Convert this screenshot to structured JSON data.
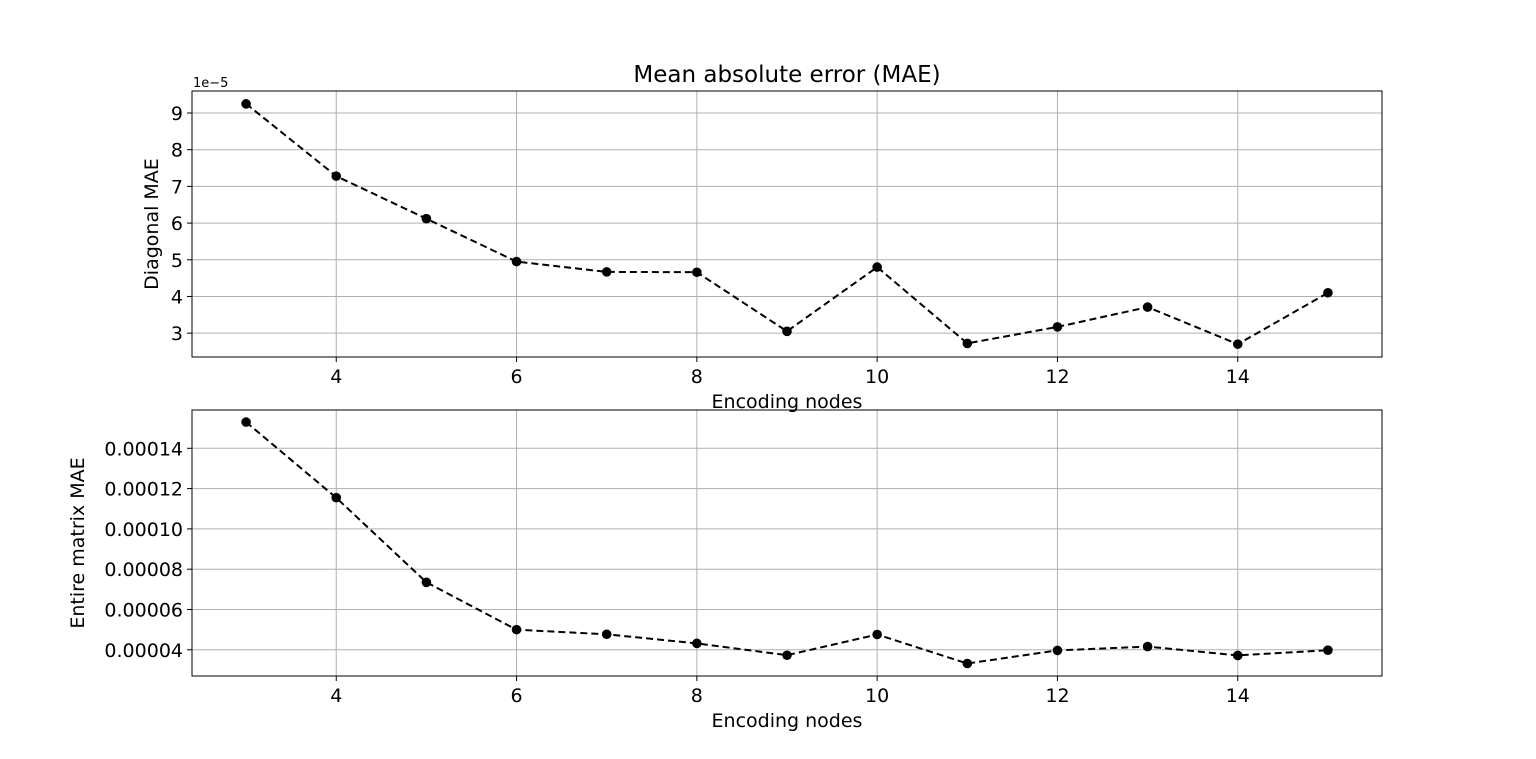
{
  "title": "Mean absolute error (MAE)",
  "colors": {
    "line": "#000000",
    "marker": "#000000",
    "grid": "#b0b0b0",
    "frame": "#000000"
  },
  "chart_data": [
    {
      "type": "line",
      "title": "Mean absolute error (MAE)",
      "xlabel": "Encoding nodes",
      "ylabel": "Diagonal MAE",
      "y_offset_label": "1e−5",
      "xlim": [
        2.4,
        15.6
      ],
      "ylim": [
        2.35,
        9.6
      ],
      "xticks": [
        4,
        6,
        8,
        10,
        12,
        14
      ],
      "xtick_labels": [
        "4",
        "6",
        "8",
        "10",
        "12",
        "14"
      ],
      "yticks": [
        3,
        4,
        5,
        6,
        7,
        8,
        9
      ],
      "ytick_labels": [
        "3",
        "4",
        "5",
        "6",
        "7",
        "8",
        "9"
      ],
      "grid": true,
      "line_style": "dashed",
      "marker": "circle",
      "series": [
        {
          "x": [
            3,
            4,
            5,
            6,
            7,
            8,
            9,
            10,
            11,
            12,
            13,
            14,
            15
          ],
          "y": [
            9.25,
            7.28,
            6.12,
            4.95,
            4.67,
            4.66,
            3.05,
            4.8,
            2.72,
            3.17,
            3.71,
            2.7,
            4.1
          ]
        }
      ]
    },
    {
      "type": "line",
      "xlabel": "Encoding nodes",
      "ylabel": "Entire matrix MAE",
      "xlim": [
        2.4,
        15.6
      ],
      "ylim": [
        2.7e-05,
        0.000159
      ],
      "xticks": [
        4,
        6,
        8,
        10,
        12,
        14
      ],
      "xtick_labels": [
        "4",
        "6",
        "8",
        "10",
        "12",
        "14"
      ],
      "yticks": [
        4e-05,
        6e-05,
        8e-05,
        0.0001,
        0.00012,
        0.00014
      ],
      "ytick_labels": [
        "0.00004",
        "0.00006",
        "0.00008",
        "0.00010",
        "0.00012",
        "0.00014"
      ],
      "grid": true,
      "line_style": "dashed",
      "marker": "circle",
      "series": [
        {
          "x": [
            3,
            4,
            5,
            6,
            7,
            8,
            9,
            10,
            11,
            12,
            13,
            14,
            15
          ],
          "y": [
            0.000153,
            0.0001155,
            7.35e-05,
            5e-05,
            4.77e-05,
            4.32e-05,
            3.73e-05,
            4.76e-05,
            3.32e-05,
            3.97e-05,
            4.16e-05,
            3.72e-05,
            3.98e-05
          ]
        }
      ]
    }
  ]
}
